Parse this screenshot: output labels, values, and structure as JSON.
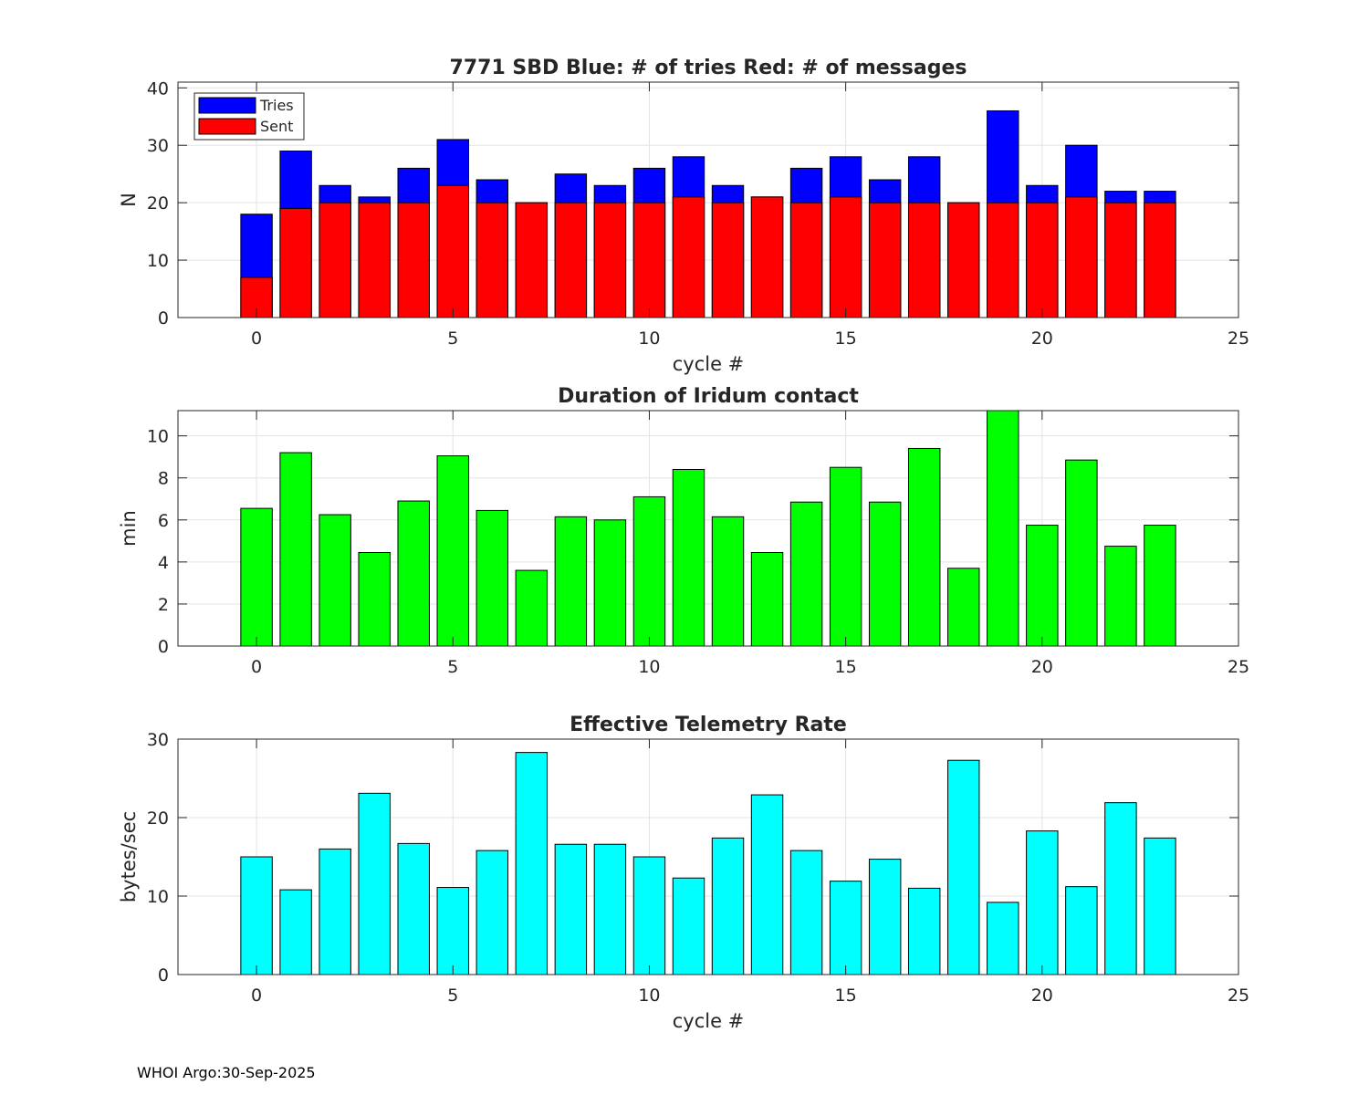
{
  "footer": "WHOI Argo:30-Sep-2025",
  "chart_data": [
    {
      "type": "bar",
      "stacked": "overlay",
      "title": "7771 SBD  Blue: # of tries   Red: # of messages",
      "xlabel": "cycle #",
      "ylabel": "N",
      "xlim": [
        -2,
        25
      ],
      "ylim": [
        0,
        41
      ],
      "xticks": [
        0,
        5,
        10,
        15,
        20,
        25
      ],
      "yticks": [
        0,
        10,
        20,
        30,
        40
      ],
      "grid": true,
      "legend": {
        "position": "top-left",
        "entries": [
          "Tries",
          "Sent"
        ]
      },
      "x": [
        0,
        1,
        2,
        3,
        4,
        5,
        6,
        7,
        8,
        9,
        10,
        11,
        12,
        13,
        14,
        15,
        16,
        17,
        18,
        19,
        20,
        21,
        22,
        23
      ],
      "series": [
        {
          "name": "Tries",
          "color": "#0000ff",
          "values": [
            18,
            29,
            23,
            21,
            26,
            31,
            24,
            20,
            25,
            23,
            26,
            28,
            23,
            21,
            26,
            28,
            24,
            28,
            20,
            36,
            23,
            30,
            22,
            22
          ]
        },
        {
          "name": "Sent",
          "color": "#ff0000",
          "values": [
            7,
            19,
            20,
            20,
            20,
            23,
            20,
            20,
            20,
            20,
            20,
            21,
            20,
            21,
            20,
            21,
            20,
            20,
            20,
            20,
            20,
            21,
            20,
            20
          ]
        }
      ]
    },
    {
      "type": "bar",
      "title": "Duration of Iridum contact",
      "xlabel": "",
      "ylabel": "min",
      "xlim": [
        -2,
        25
      ],
      "ylim": [
        0,
        11.2
      ],
      "xticks": [
        0,
        5,
        10,
        15,
        20,
        25
      ],
      "yticks": [
        0,
        2,
        4,
        6,
        8,
        10
      ],
      "grid": true,
      "x": [
        0,
        1,
        2,
        3,
        4,
        5,
        6,
        7,
        8,
        9,
        10,
        11,
        12,
        13,
        14,
        15,
        16,
        17,
        18,
        19,
        20,
        21,
        22,
        23
      ],
      "series": [
        {
          "name": "Duration",
          "color": "#00ff00",
          "values": [
            6.55,
            9.2,
            6.25,
            4.45,
            6.9,
            9.05,
            6.45,
            3.6,
            6.15,
            6.0,
            7.1,
            8.4,
            6.15,
            4.45,
            6.85,
            8.5,
            6.85,
            9.4,
            3.7,
            11.2,
            5.75,
            8.85,
            4.75,
            5.75
          ]
        }
      ]
    },
    {
      "type": "bar",
      "title": "Effective Telemetry Rate",
      "xlabel": "cycle #",
      "ylabel": "bytes/sec",
      "xlim": [
        -2,
        25
      ],
      "ylim": [
        0,
        30
      ],
      "xticks": [
        0,
        5,
        10,
        15,
        20,
        25
      ],
      "yticks": [
        0,
        10,
        20,
        30
      ],
      "grid": true,
      "x": [
        0,
        1,
        2,
        3,
        4,
        5,
        6,
        7,
        8,
        9,
        10,
        11,
        12,
        13,
        14,
        15,
        16,
        17,
        18,
        19,
        20,
        21,
        22,
        23
      ],
      "series": [
        {
          "name": "Rate",
          "color": "#00ffff",
          "values": [
            15.0,
            10.8,
            16.0,
            23.1,
            16.7,
            11.1,
            15.8,
            28.3,
            16.6,
            16.6,
            15.0,
            12.3,
            17.4,
            22.9,
            15.8,
            11.9,
            14.7,
            11.0,
            27.3,
            9.2,
            18.3,
            11.2,
            21.9,
            17.4
          ]
        }
      ]
    }
  ]
}
